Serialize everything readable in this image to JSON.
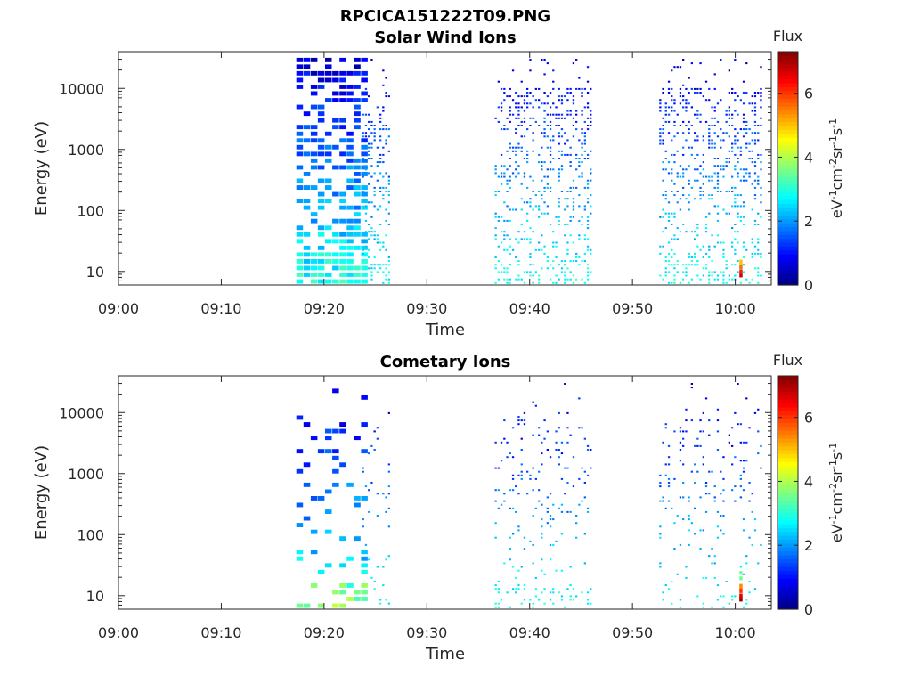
{
  "figure": {
    "title": "RPCICA151222T09.PNG"
  },
  "colorbar": {
    "title": "Flux",
    "label_html": "eV<tspan baseline-shift=\"super\" font-size=\"11\">-1</tspan>cm<tspan baseline-shift=\"super\" font-size=\"11\">-2</tspan>sr<tspan baseline-shift=\"super\" font-size=\"11\">-1</tspan>s<tspan baseline-shift=\"super\" font-size=\"11\">-1</tspan>",
    "ticks": [
      "0",
      "2",
      "4",
      "6"
    ],
    "range": [
      0,
      7.3
    ],
    "colormap": "jet"
  },
  "chart_data": [
    {
      "type": "heatmap",
      "title": "Solar Wind Ions",
      "xlabel": "Time",
      "ylabel": "Energy (eV)",
      "xticks": [
        "09:00",
        "09:10",
        "09:20",
        "09:30",
        "09:40",
        "09:50",
        "10:00"
      ],
      "xlim_min": [
        0,
        63.5
      ],
      "yticks": [
        "10",
        "100",
        "1000",
        "10000"
      ],
      "ylim": [
        6,
        40000
      ],
      "yscale": "log",
      "activity_intervals_min": [
        [
          17.3,
          23.7
        ],
        [
          23.7,
          26.5
        ],
        [
          36.6,
          46.0
        ],
        [
          52.6,
          62.6
        ]
      ],
      "peak_flux": 6.8
    },
    {
      "type": "heatmap",
      "title": "Cometary Ions",
      "xlabel": "Time",
      "ylabel": "Energy (eV)",
      "xticks": [
        "09:00",
        "09:10",
        "09:20",
        "09:30",
        "09:40",
        "09:50",
        "10:00"
      ],
      "xlim_min": [
        0,
        63.5
      ],
      "yticks": [
        "10",
        "100",
        "1000",
        "10000"
      ],
      "ylim": [
        6,
        40000
      ],
      "yscale": "log",
      "activity_intervals_min": [
        [
          17.3,
          23.7
        ],
        [
          23.7,
          26.5
        ],
        [
          36.6,
          46.0
        ],
        [
          52.6,
          62.6
        ]
      ],
      "peak_flux": 7.2
    }
  ]
}
